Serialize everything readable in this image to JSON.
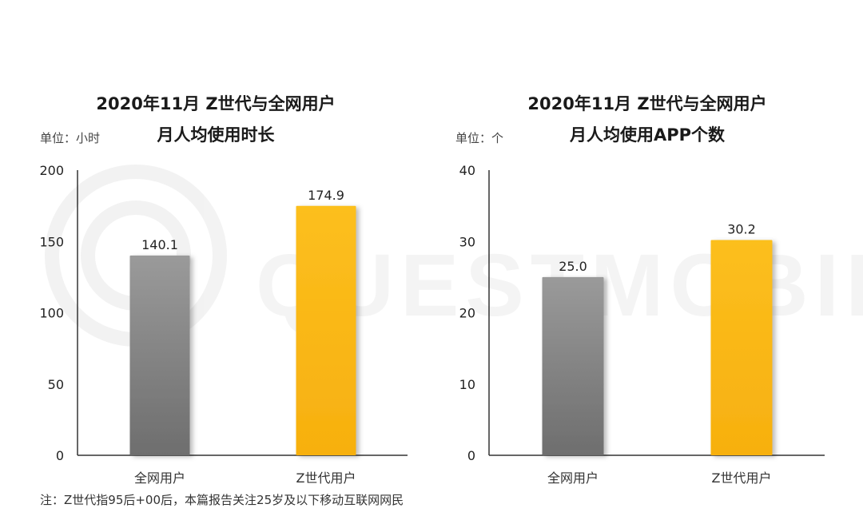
{
  "chart_data": [
    {
      "type": "bar",
      "title": "2020年11月 Z世代与全网用户",
      "subtitle": "月人均使用时长",
      "unit": "单位：小时",
      "categories": [
        "全网用户",
        "Z世代用户"
      ],
      "values": [
        140.1,
        174.9
      ],
      "value_labels": [
        "140.1",
        "174.9"
      ],
      "yticks": [
        "0",
        "50",
        "100",
        "150",
        "200"
      ],
      "ylim": [
        0,
        200
      ],
      "colors": [
        "#7a7a7a",
        "#fbb816"
      ],
      "grid": false
    },
    {
      "type": "bar",
      "title": "2020年11月 Z世代与全网用户",
      "subtitle": "月人均使用APP个数",
      "unit": "单位：个",
      "categories": [
        "全网用户",
        "Z世代用户"
      ],
      "values": [
        25.0,
        30.2
      ],
      "value_labels": [
        "25.0",
        "30.2"
      ],
      "yticks": [
        "0",
        "10",
        "20",
        "30",
        "40"
      ],
      "ylim": [
        0,
        40
      ],
      "colors": [
        "#7a7a7a",
        "#fbb816"
      ],
      "grid": false
    }
  ],
  "watermark": "QUESTMOBILE",
  "footnote": "注：Z世代指95后+00后，本篇报告关注25岁及以下移动互联网网民"
}
